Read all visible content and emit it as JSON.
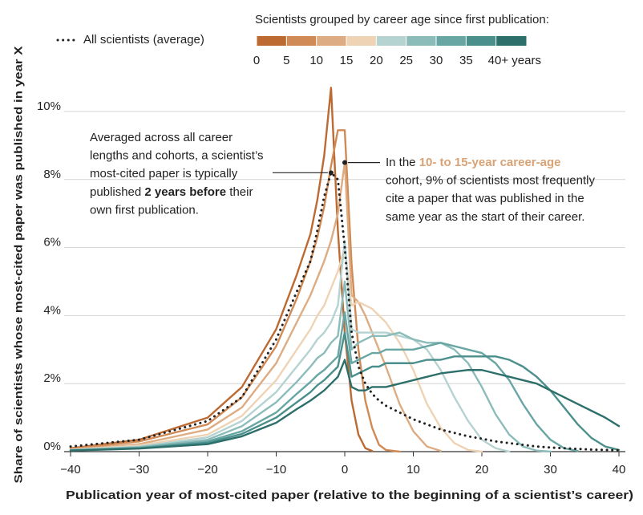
{
  "chart_data": {
    "type": "line",
    "x_label": "Publication year of most-cited paper (relative to the beginning of a scientist’s career)",
    "y_label": "Share of scientists whose most-cited paper was published in year X",
    "x": [
      -40,
      -30,
      -20,
      -15,
      -10,
      -7,
      -5,
      -4,
      -3,
      -2,
      -1,
      0,
      1,
      2,
      3,
      4,
      5,
      6,
      8,
      10,
      12,
      14,
      16,
      18,
      20,
      22,
      24,
      26,
      28,
      30,
      32,
      34,
      36,
      38,
      40
    ],
    "xlim": [
      -40,
      40
    ],
    "xticks": [
      {
        "value": -40,
        "label": "−40"
      },
      {
        "value": -30,
        "label": "−30"
      },
      {
        "value": -20,
        "label": "−20"
      },
      {
        "value": -10,
        "label": "−10"
      },
      0,
      10,
      20,
      30,
      40
    ],
    "ylim": [
      0,
      11
    ],
    "yticks": [
      {
        "value": 0,
        "label": "0%"
      },
      {
        "value": 2,
        "label": "2%"
      },
      {
        "value": 4,
        "label": "4%"
      },
      {
        "value": 6,
        "label": "6%"
      },
      {
        "value": 8,
        "label": "8%"
      },
      {
        "value": 10,
        "label": "10%"
      }
    ],
    "grid": true,
    "legend": {
      "title": "Scientists grouped by career age since first publication:",
      "ticks": [
        "0",
        "5",
        "10",
        "15",
        "20",
        "25",
        "30",
        "35",
        "40+ years"
      ]
    },
    "series": [
      {
        "color": "#bd6a32",
        "values": [
          0.1,
          0.35,
          1.0,
          1.9,
          3.6,
          5.2,
          6.4,
          7.4,
          8.7,
          10.7,
          6.5,
          3.5,
          1.5,
          0.5,
          0.1,
          0.02,
          null,
          null,
          null,
          null,
          null,
          null,
          null,
          null,
          null,
          null,
          null,
          null,
          null,
          null,
          null,
          null,
          null,
          null,
          null
        ]
      },
      {
        "color": "#d08a55",
        "values": [
          0.08,
          0.3,
          0.8,
          1.6,
          3.1,
          4.5,
          5.6,
          6.3,
          7.2,
          8.4,
          9.45,
          9.45,
          5.5,
          3.0,
          1.5,
          0.7,
          0.2,
          0.05,
          0.0,
          null,
          null,
          null,
          null,
          null,
          null,
          null,
          null,
          null,
          null,
          null,
          null,
          null,
          null,
          null,
          null
        ]
      },
      {
        "color": "#ddac82",
        "values": [
          0.06,
          0.22,
          0.65,
          1.3,
          2.6,
          3.8,
          4.6,
          5.1,
          5.6,
          6.2,
          7.0,
          8.5,
          4.6,
          4.4,
          4.0,
          3.5,
          3.0,
          2.5,
          1.4,
          0.6,
          0.15,
          0.02,
          null,
          null,
          null,
          null,
          null,
          null,
          null,
          null,
          null,
          null,
          null,
          null,
          null
        ]
      },
      {
        "color": "#efd3b5",
        "values": [
          0.05,
          0.18,
          0.5,
          1.05,
          2.1,
          3.0,
          3.6,
          4.0,
          4.3,
          4.8,
          5.3,
          6.0,
          4.3,
          4.4,
          4.3,
          4.2,
          4.0,
          3.8,
          3.2,
          2.4,
          1.4,
          0.7,
          0.25,
          0.05,
          0.0,
          null,
          null,
          null,
          null,
          null,
          null,
          null,
          null,
          null,
          null
        ]
      },
      {
        "color": "#b4d3d1",
        "values": [
          0.05,
          0.15,
          0.42,
          0.9,
          1.75,
          2.5,
          3.0,
          3.3,
          3.5,
          3.8,
          4.3,
          6.2,
          3.6,
          3.5,
          3.5,
          3.5,
          3.5,
          3.5,
          3.4,
          3.3,
          3.0,
          2.4,
          1.6,
          0.9,
          0.35,
          0.1,
          0.0,
          null,
          null,
          null,
          null,
          null,
          null,
          null,
          null
        ]
      },
      {
        "color": "#8cbcba",
        "values": [
          0.04,
          0.13,
          0.35,
          0.75,
          1.45,
          2.05,
          2.5,
          2.75,
          2.9,
          3.2,
          3.4,
          5.0,
          3.0,
          3.2,
          3.3,
          3.4,
          3.4,
          3.4,
          3.5,
          3.3,
          3.2,
          3.2,
          3.0,
          2.6,
          1.9,
          1.1,
          0.5,
          0.15,
          0.03,
          0.0,
          null,
          null,
          null,
          null,
          null
        ]
      },
      {
        "color": "#68a6a4",
        "values": [
          0.04,
          0.11,
          0.3,
          0.6,
          1.15,
          1.7,
          2.05,
          2.25,
          2.4,
          2.6,
          2.8,
          4.1,
          2.6,
          2.7,
          2.8,
          2.9,
          2.9,
          3.0,
          3.0,
          3.0,
          3.1,
          3.2,
          3.1,
          3.0,
          2.9,
          2.6,
          2.1,
          1.4,
          0.8,
          0.35,
          0.1,
          0.02,
          null,
          null,
          null
        ]
      },
      {
        "color": "#4a8f8c",
        "values": [
          0.035,
          0.1,
          0.26,
          0.52,
          1.0,
          1.45,
          1.75,
          1.95,
          2.1,
          2.3,
          2.5,
          3.5,
          2.2,
          2.3,
          2.4,
          2.5,
          2.5,
          2.6,
          2.6,
          2.6,
          2.7,
          2.7,
          2.8,
          2.8,
          2.8,
          2.8,
          2.7,
          2.5,
          2.2,
          1.8,
          1.3,
          0.8,
          0.4,
          0.15,
          0.05
        ]
      },
      {
        "color": "#2c6f6b",
        "values": [
          0.03,
          0.09,
          0.22,
          0.45,
          0.85,
          1.25,
          1.5,
          1.65,
          1.8,
          2.0,
          2.2,
          2.7,
          1.9,
          1.8,
          1.8,
          1.9,
          1.9,
          1.9,
          2.0,
          2.1,
          2.2,
          2.3,
          2.35,
          2.4,
          2.4,
          2.3,
          2.2,
          2.1,
          2.0,
          1.8,
          1.6,
          1.4,
          1.2,
          1.0,
          0.75
        ]
      },
      {
        "name": "All scientists (average)",
        "color": "#222222",
        "dotted": true,
        "values": [
          0.15,
          0.35,
          0.9,
          1.6,
          3.3,
          4.7,
          5.6,
          6.5,
          7.5,
          8.2,
          8.0,
          6.0,
          3.5,
          2.5,
          2.0,
          1.7,
          1.5,
          1.35,
          1.15,
          0.95,
          0.8,
          0.65,
          0.55,
          0.45,
          0.38,
          0.3,
          0.25,
          0.2,
          0.15,
          0.12,
          0.1,
          0.08,
          0.06,
          0.05,
          0.04
        ]
      }
    ],
    "annotations": [
      {
        "lines": [
          [
            {
              "text": "Averaged across all career"
            }
          ],
          [
            {
              "text": "lengths and cohorts, a scientist’s"
            }
          ],
          [
            {
              "text": "most-cited paper is typically"
            }
          ],
          [
            {
              "text": "published "
            },
            {
              "text": "2 years before",
              "bold": true
            },
            {
              "text": " their"
            }
          ],
          [
            {
              "text": "own first publication."
            }
          ]
        ]
      },
      {
        "lines": [
          [
            {
              "text": "In the "
            },
            {
              "text": "10- to 15-year career-age",
              "bold": true,
              "color": "#d9a274"
            }
          ],
          [
            {
              "text": "cohort, 9% of scientists most frequently"
            }
          ],
          [
            {
              "text": "cite a paper that was published in the"
            }
          ],
          [
            {
              "text": "same year as the start of their career."
            }
          ]
        ]
      }
    ]
  }
}
